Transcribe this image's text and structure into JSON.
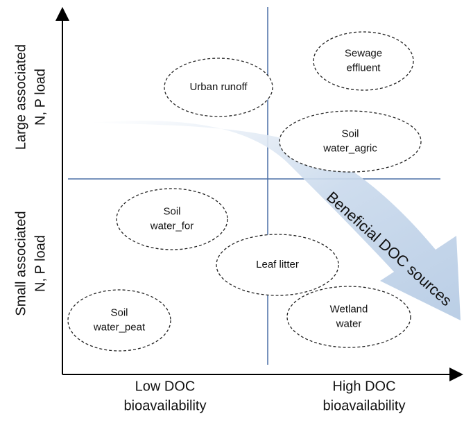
{
  "axes": {
    "y_top": [
      "Large associated",
      "N, P load"
    ],
    "y_bottom": [
      "Small associated",
      "N, P load"
    ],
    "x_left": [
      "Low DOC",
      "bioavailability"
    ],
    "x_right": [
      "High DOC",
      "bioavailability"
    ]
  },
  "nodes": [
    {
      "lines": [
        "Sewage",
        "effluent"
      ]
    },
    {
      "lines": [
        "Urban runoff"
      ]
    },
    {
      "lines": [
        "Soil",
        "water_agric"
      ]
    },
    {
      "lines": [
        "Soil",
        "water_for"
      ]
    },
    {
      "lines": [
        "Leaf litter"
      ]
    },
    {
      "lines": [
        "Soil",
        "water_peat"
      ]
    },
    {
      "lines": [
        "Wetland",
        "water"
      ]
    }
  ],
  "arrow": {
    "label": "Beneficial DOC sources"
  }
}
